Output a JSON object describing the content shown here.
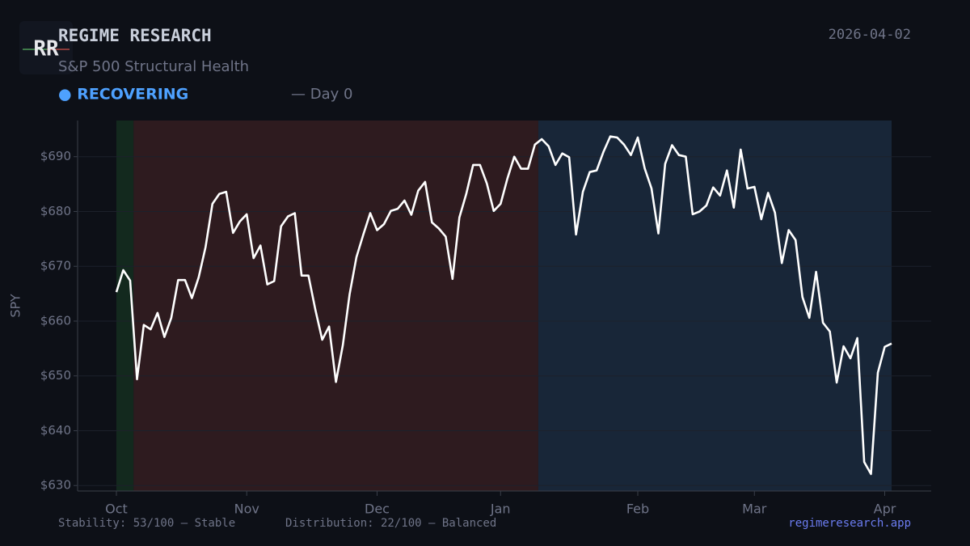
{
  "header": {
    "logo": "RR",
    "title": "REGIME RESEARCH",
    "subtitle": "S&P 500 Structural Health",
    "status": "● RECOVERING",
    "status_detail": "— Day 0",
    "date": "2026-04-02"
  },
  "footer": {
    "stability": "Stability: 53/100 — Stable",
    "distribution": "Distribution: 22/100 — Balanced",
    "site": "regimeresearch.app"
  },
  "chart_data": {
    "type": "line",
    "y_label": "SPY",
    "color": "#ffffff",
    "grid": true,
    "ylim": [
      629,
      696.6
    ],
    "yticks": [
      {
        "value": 630,
        "label": "$630"
      },
      {
        "value": 640,
        "label": "$640"
      },
      {
        "value": 650,
        "label": "$650"
      },
      {
        "value": 660,
        "label": "$660"
      },
      {
        "value": 670,
        "label": "$670"
      },
      {
        "value": 680,
        "label": "$680"
      },
      {
        "value": 690,
        "label": "$690"
      }
    ],
    "categories": [
      "Oct",
      null,
      null,
      null,
      null,
      null,
      null,
      null,
      null,
      null,
      null,
      null,
      null,
      null,
      null,
      null,
      null,
      null,
      null,
      "Nov",
      null,
      null,
      null,
      null,
      null,
      null,
      null,
      null,
      null,
      null,
      null,
      null,
      null,
      null,
      null,
      null,
      null,
      null,
      "Dec",
      null,
      null,
      null,
      null,
      null,
      null,
      null,
      null,
      null,
      null,
      null,
      null,
      null,
      null,
      null,
      null,
      null,
      "Jan",
      null,
      null,
      null,
      null,
      null,
      null,
      null,
      null,
      null,
      null,
      null,
      null,
      null,
      null,
      null,
      null,
      null,
      null,
      null,
      "Feb",
      null,
      null,
      null,
      null,
      null,
      null,
      null,
      null,
      null,
      null,
      null,
      null,
      null,
      null,
      null,
      null,
      "Mar",
      null,
      null,
      null,
      null,
      null,
      null,
      null,
      null,
      null,
      null,
      null,
      null,
      null,
      null,
      null,
      null,
      null,
      null,
      "Apr",
      null
    ],
    "values": [
      665.3,
      669.3,
      667.4,
      649.4,
      659.3,
      658.5,
      661.5,
      657.1,
      660.6,
      667.5,
      667.5,
      664.2,
      668.0,
      673.5,
      681.4,
      683.2,
      683.6,
      676.1,
      678.2,
      679.5,
      671.5,
      673.8,
      666.7,
      667.3,
      677.3,
      679.1,
      679.7,
      668.3,
      668.3,
      662.1,
      656.6,
      659.0,
      648.9,
      655.6,
      664.9,
      671.7,
      675.8,
      679.7,
      676.6,
      677.7,
      680.1,
      680.5,
      682.0,
      679.4,
      683.8,
      685.4,
      678.0,
      676.9,
      675.4,
      667.7,
      678.9,
      683.2,
      688.5,
      688.5,
      685.1,
      680.1,
      681.4,
      686.0,
      690.0,
      687.8,
      687.8,
      692.2,
      693.2,
      691.9,
      688.5,
      690.6,
      689.9,
      675.8,
      683.6,
      687.2,
      687.5,
      690.9,
      693.7,
      693.5,
      692.2,
      690.3,
      693.5,
      687.9,
      684.2,
      676.0,
      688.7,
      692.1,
      690.3,
      690.0,
      679.5,
      680.0,
      681.1,
      684.4,
      682.9,
      687.5,
      680.7,
      691.3,
      684.2,
      684.5,
      678.6,
      683.4,
      679.8,
      670.6,
      676.6,
      674.8,
      664.4,
      660.6,
      669.0,
      659.7,
      658.1,
      648.8,
      655.4,
      653.2,
      656.9,
      634.3,
      632.1,
      650.6,
      655.3,
      655.9
    ]
  }
}
